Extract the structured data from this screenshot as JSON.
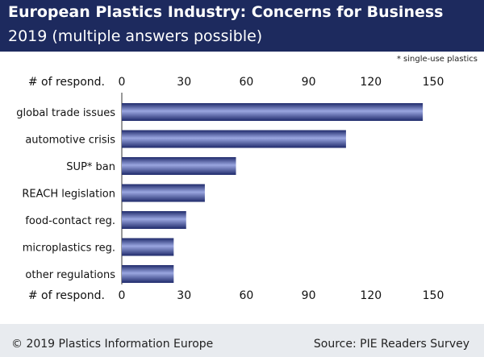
{
  "header": {
    "title": "European Plastics Industry: Concerns for Business",
    "subtitle": "2019 (multiple answers possible)"
  },
  "footnote": "* single-use plastics",
  "footer": {
    "copyright": "© 2019 Plastics Information Europe",
    "source": "Source: PIE Readers Survey"
  },
  "colors": {
    "header_bg": "#1d2a5e",
    "bar_dark": "#1f2a6b",
    "bar_light": "#9aa6e0",
    "background": "#e8ebef"
  },
  "chart_data": {
    "type": "bar",
    "orientation": "horizontal",
    "axis_label": "# of respond.",
    "categories": [
      "global trade issues",
      "automotive crisis",
      "SUP* ban",
      "REACH legislation",
      "food-contact reg.",
      "microplastics reg.",
      "other regulations"
    ],
    "values": [
      145,
      108,
      55,
      40,
      31,
      25,
      25
    ],
    "xlim": [
      0,
      150
    ],
    "ticks": [
      0,
      30,
      60,
      90,
      120,
      150
    ],
    "grid": false,
    "axis_position": "top and bottom"
  }
}
